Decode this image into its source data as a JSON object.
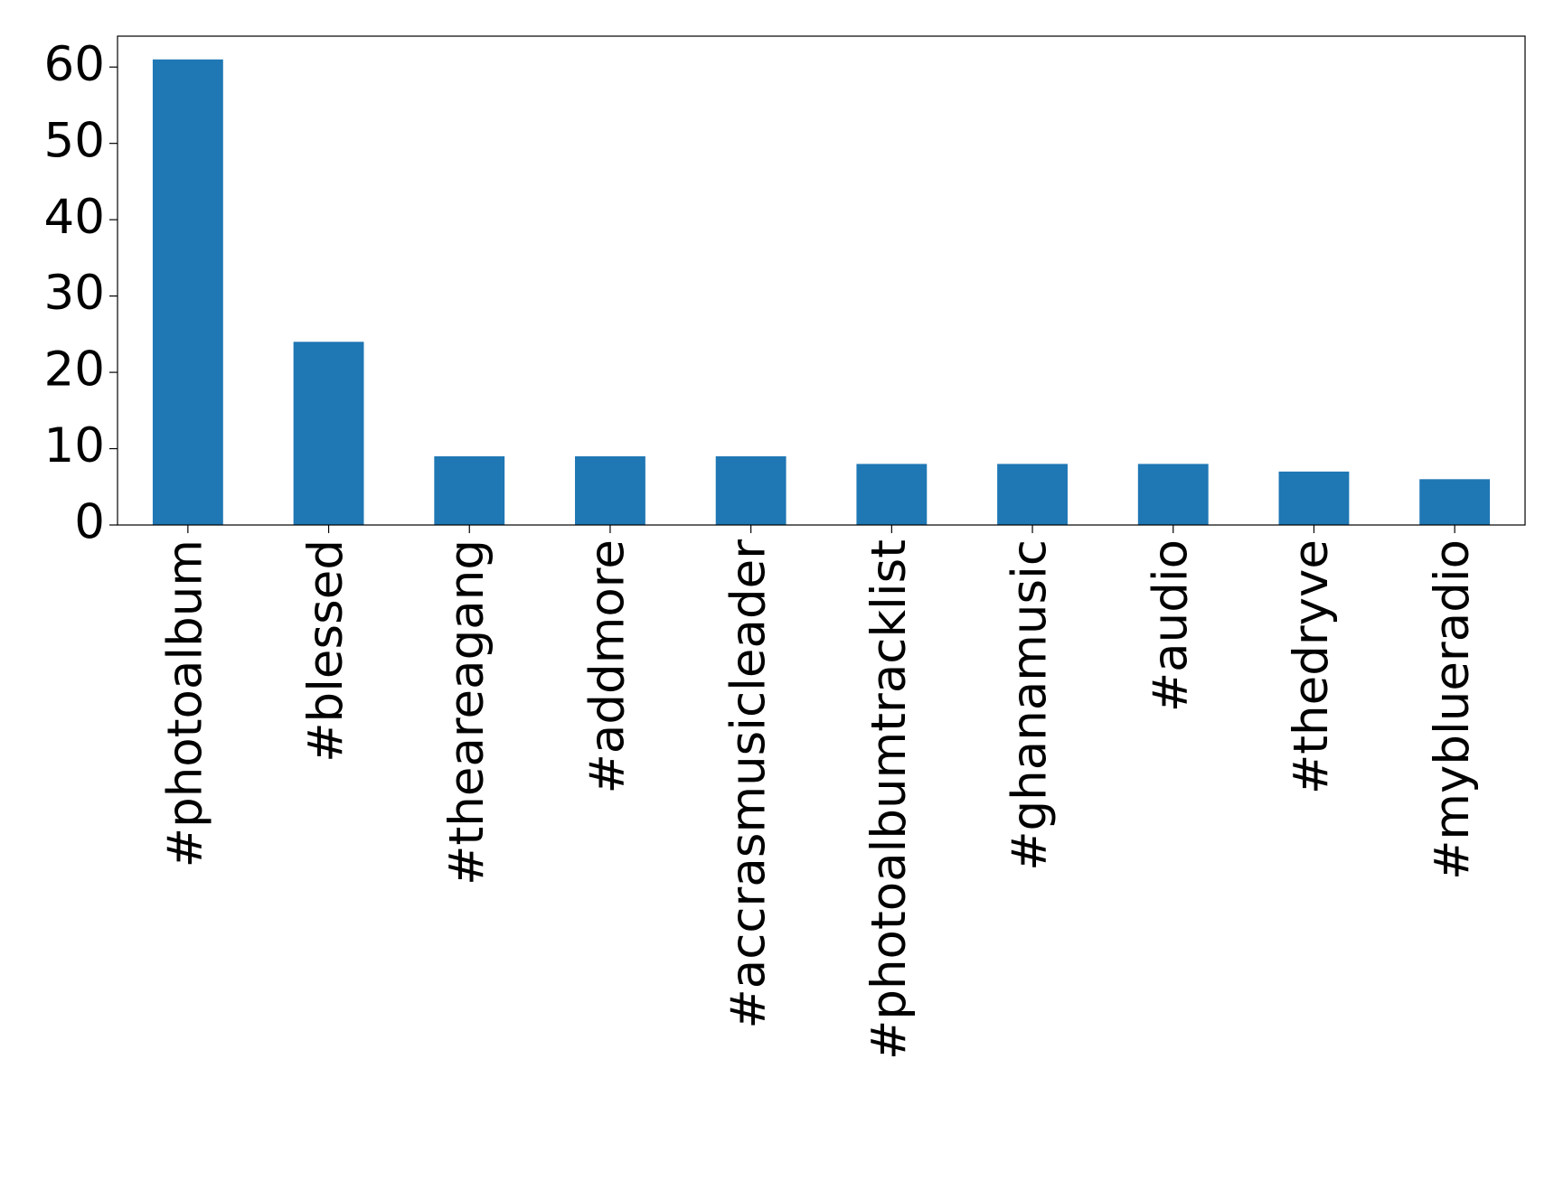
{
  "chart_data": {
    "type": "bar",
    "categories": [
      "#photoalbum",
      "#blessed",
      "#theareagang",
      "#addmore",
      "#accrasmusicleader",
      "#photoalbumtracklist",
      "#ghanamusic",
      "#audio",
      "#thedryve",
      "#myblueradio"
    ],
    "values": [
      61,
      24,
      9,
      9,
      9,
      8,
      8,
      8,
      7,
      6
    ],
    "color": "#1f77b4",
    "ylim": [
      0,
      64.05
    ],
    "yticks": [
      0,
      10,
      20,
      30,
      40,
      50,
      60
    ],
    "grid": false
  }
}
